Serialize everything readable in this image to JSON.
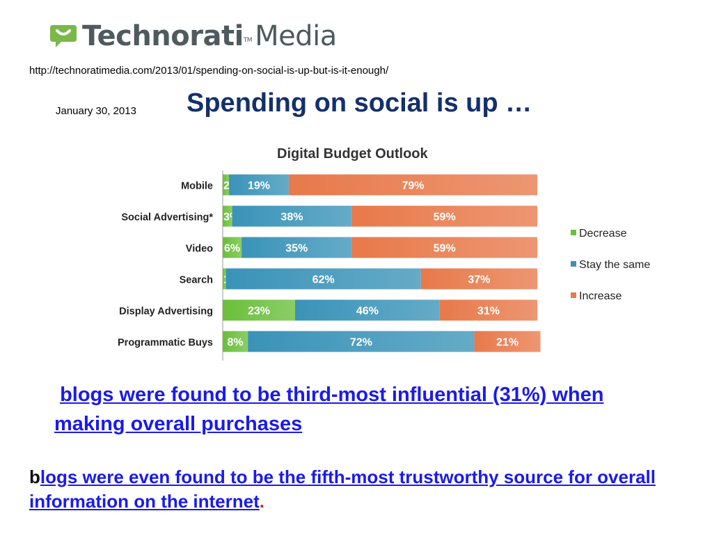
{
  "logo": {
    "brand": "Technorati",
    "tm": "TM",
    "suffix": "Media",
    "colors": {
      "icon": "#7bb84a",
      "text": "#4f5a5e"
    }
  },
  "url": "http://technoratimedia.com/2013/01/spending-on-social-is-up-but-is-it-enough/",
  "date": "January 30, 2013",
  "headline": "Spending on social is up …",
  "chart_data": {
    "type": "bar",
    "orientation": "horizontal",
    "stacked": true,
    "title": "Digital Budget Outlook",
    "categories": [
      "Mobile",
      "Social Advertising*",
      "Video",
      "Search",
      "Display  Advertising",
      "Programmatic  Buys"
    ],
    "series": [
      {
        "name": "Decrease",
        "color": "#6abf3a",
        "values": [
          2,
          3,
          6,
          1,
          23,
          8
        ]
      },
      {
        "name": "Stay the same",
        "color": "#3a93b8",
        "values": [
          19,
          38,
          35,
          62,
          46,
          72
        ]
      },
      {
        "name": "Increase",
        "color": "#e8794a",
        "values": [
          79,
          59,
          59,
          37,
          31,
          21
        ]
      }
    ],
    "xlim": [
      0,
      100
    ],
    "legend_position": "right",
    "grid": false
  },
  "bullets": [
    {
      "link": "blogs were found to be third-most influential (31%) when making overall purchases"
    },
    {
      "prefix": "b",
      "link": "logs were even found to be the fifth-most trustworthy source for overall information on the internet",
      "suffix": "."
    }
  ]
}
